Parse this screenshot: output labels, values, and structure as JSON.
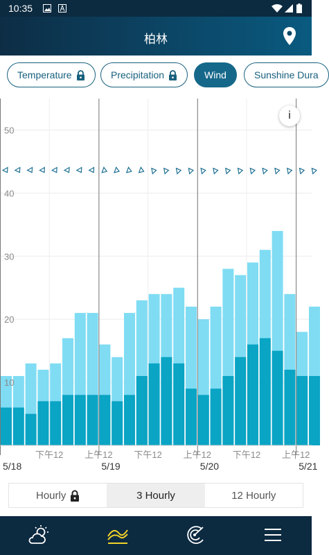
{
  "status": {
    "time": "10:35"
  },
  "header": {
    "title": "柏林"
  },
  "tabs": [
    {
      "label": "Temperature",
      "locked": true
    },
    {
      "label": "Precipitation",
      "locked": true
    },
    {
      "label": "Wind",
      "active": true
    },
    {
      "label": "Sunshine Dura"
    }
  ],
  "info_label": "i",
  "segments": [
    {
      "label": "Hourly",
      "locked": true
    },
    {
      "label": "3 Hourly",
      "active": true
    },
    {
      "label": "12 Hourly"
    }
  ],
  "colors": {
    "gust": "#7fdcf3",
    "wind": "#0aa4c4",
    "header": "#0c2a40",
    "accent": "#16688a"
  },
  "chart_data": {
    "type": "bar",
    "y_ticks": [
      "10",
      "20",
      "30",
      "40",
      "50"
    ],
    "ylim": [
      0,
      55
    ],
    "grid": true,
    "x_tick_labels": [
      "下午12",
      "上午12",
      "下午12",
      "上午12",
      "下午12",
      "上午12"
    ],
    "date_labels": [
      "5/18",
      "5/19",
      "5/20",
      "5/21"
    ],
    "series": [
      {
        "values": [
          11,
          11,
          13,
          12,
          13,
          17,
          21,
          21,
          16,
          14,
          21,
          23,
          24,
          24,
          25,
          22,
          20,
          22,
          28,
          27,
          29,
          31,
          34,
          24,
          18,
          22
        ]
      },
      {
        "values": [
          6,
          6,
          5,
          7,
          7,
          8,
          8,
          8,
          8,
          7,
          8,
          11,
          13,
          14,
          13,
          9,
          8,
          9,
          11,
          14,
          16,
          17,
          15,
          12,
          11,
          11
        ]
      }
    ],
    "direction_markers": 26
  }
}
